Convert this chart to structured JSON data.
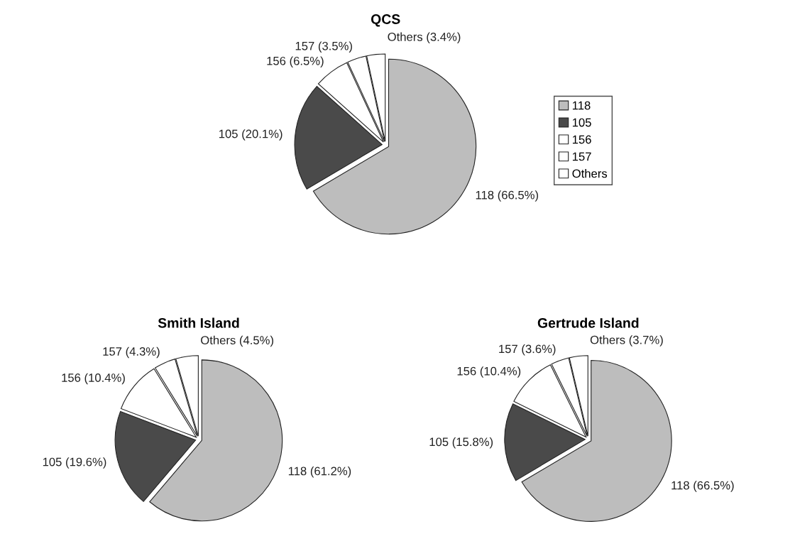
{
  "chart_data": [
    {
      "type": "pie",
      "title": "QCS",
      "categories": [
        "118",
        "105",
        "156",
        "157",
        "Others"
      ],
      "values": [
        66.5,
        20.1,
        6.5,
        3.5,
        3.4
      ],
      "colors": [
        "#bdbdbd",
        "#4a4a4a",
        "#ffffff",
        "#ffffff",
        "#ffffff"
      ],
      "value_labels": [
        "118 (66.5%)",
        "105 (20.1%)",
        "156 (6.5%)",
        "157 (3.5%)",
        "Others (3.4%)"
      ],
      "legend": "right"
    },
    {
      "type": "pie",
      "title": "Smith Island",
      "values": [
        61.2,
        19.6,
        10.4,
        4.3,
        4.5
      ],
      "colors": [
        "#bdbdbd",
        "#4a4a4a",
        "#ffffff",
        "#ffffff",
        "#ffffff"
      ],
      "value_labels": [
        "118 (61.2%)",
        "105 (19.6%)",
        "156 (10.4%)",
        "157 (4.3%)",
        "Others (4.5%)"
      ]
    },
    {
      "type": "pie",
      "title": "Gertrude Island",
      "values": [
        66.5,
        15.8,
        10.4,
        3.6,
        3.7
      ],
      "colors": [
        "#bdbdbd",
        "#4a4a4a",
        "#ffffff",
        "#ffffff",
        "#ffffff"
      ],
      "value_labels": [
        "118 (66.5%)",
        "105 (15.8%)",
        "156 (10.4%)",
        "157 (3.6%)",
        "Others (3.7%)"
      ]
    }
  ]
}
